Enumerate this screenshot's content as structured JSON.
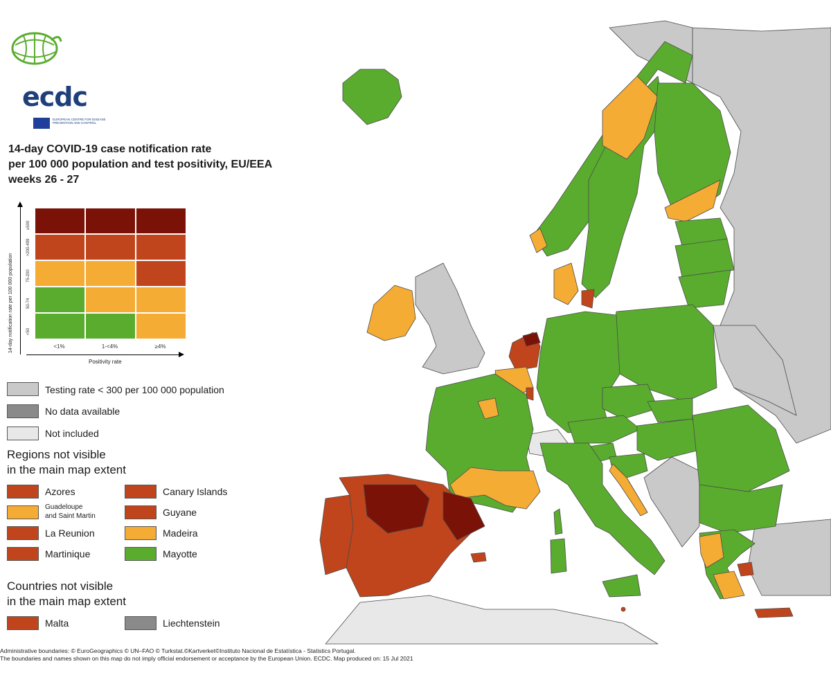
{
  "logo": {
    "text": "ecdc",
    "subtitle": "EUROPEAN CENTRE FOR DISEASE PREVENTION AND CONTROL"
  },
  "title": {
    "line1": "14-day COVID-19 case notification rate",
    "line2": "per 100 000 population and test positivity, EU/EEA",
    "line3": "weeks 26 - 27"
  },
  "colors": {
    "green": "#5aac2f",
    "yellow": "#f5ac35",
    "orange_red": "#c0451c",
    "dark_red": "#7a1208",
    "grey_testing": "#c9c9c9",
    "no_data": "#8a8a8a",
    "not_included": "#e8e8e8",
    "sea": "#ffffff"
  },
  "matrix": {
    "y_title": "14-day notification rate per 100 000 population",
    "x_title": "Positivity rate",
    "rows": [
      "≥500",
      ">200-499",
      "75-200",
      "50-74",
      "<50"
    ],
    "cols": [
      "<1%",
      "1-<4%",
      "≥4%"
    ],
    "cells": [
      [
        "dark_red",
        "dark_red",
        "dark_red"
      ],
      [
        "orange_red",
        "orange_red",
        "orange_red"
      ],
      [
        "yellow",
        "yellow",
        "orange_red"
      ],
      [
        "green",
        "yellow",
        "yellow"
      ],
      [
        "green",
        "green",
        "yellow"
      ]
    ]
  },
  "legend": {
    "testing": "Testing rate < 300 per 100 000 population",
    "no_data": "No data available",
    "not_included": "Not included"
  },
  "regions": {
    "heading1": "Regions not visible",
    "heading2": "in the main map extent",
    "items": [
      {
        "label": "Azores",
        "color": "orange_red"
      },
      {
        "label": "Canary Islands",
        "color": "orange_red"
      },
      {
        "label": "Guadeloupe",
        "label2": "and Saint Martin",
        "color": "yellow"
      },
      {
        "label": "Guyane",
        "color": "orange_red"
      },
      {
        "label": "La Reunion",
        "color": "orange_red"
      },
      {
        "label": "Madeira",
        "color": "yellow"
      },
      {
        "label": "Martinique",
        "color": "orange_red"
      },
      {
        "label": "Mayotte",
        "color": "green"
      }
    ]
  },
  "countries": {
    "heading1": "Countries not visible",
    "heading2": "in the main map extent",
    "items": [
      {
        "label": "Malta",
        "color": "orange_red"
      },
      {
        "label": "Liechtenstein",
        "color": "no_data"
      }
    ]
  },
  "footer": {
    "line1": "Administrative boundaries: © EuroGeographics © UN–FAO © Turkstat.©Kartverket©Instituto Nacional de Estatística - Statistics Portugal.",
    "line2": "The boundaries and names shown on this map do not imply official endorsement or acceptance by the European Union. ECDC. Map produced on: 15 Jul 2021"
  }
}
